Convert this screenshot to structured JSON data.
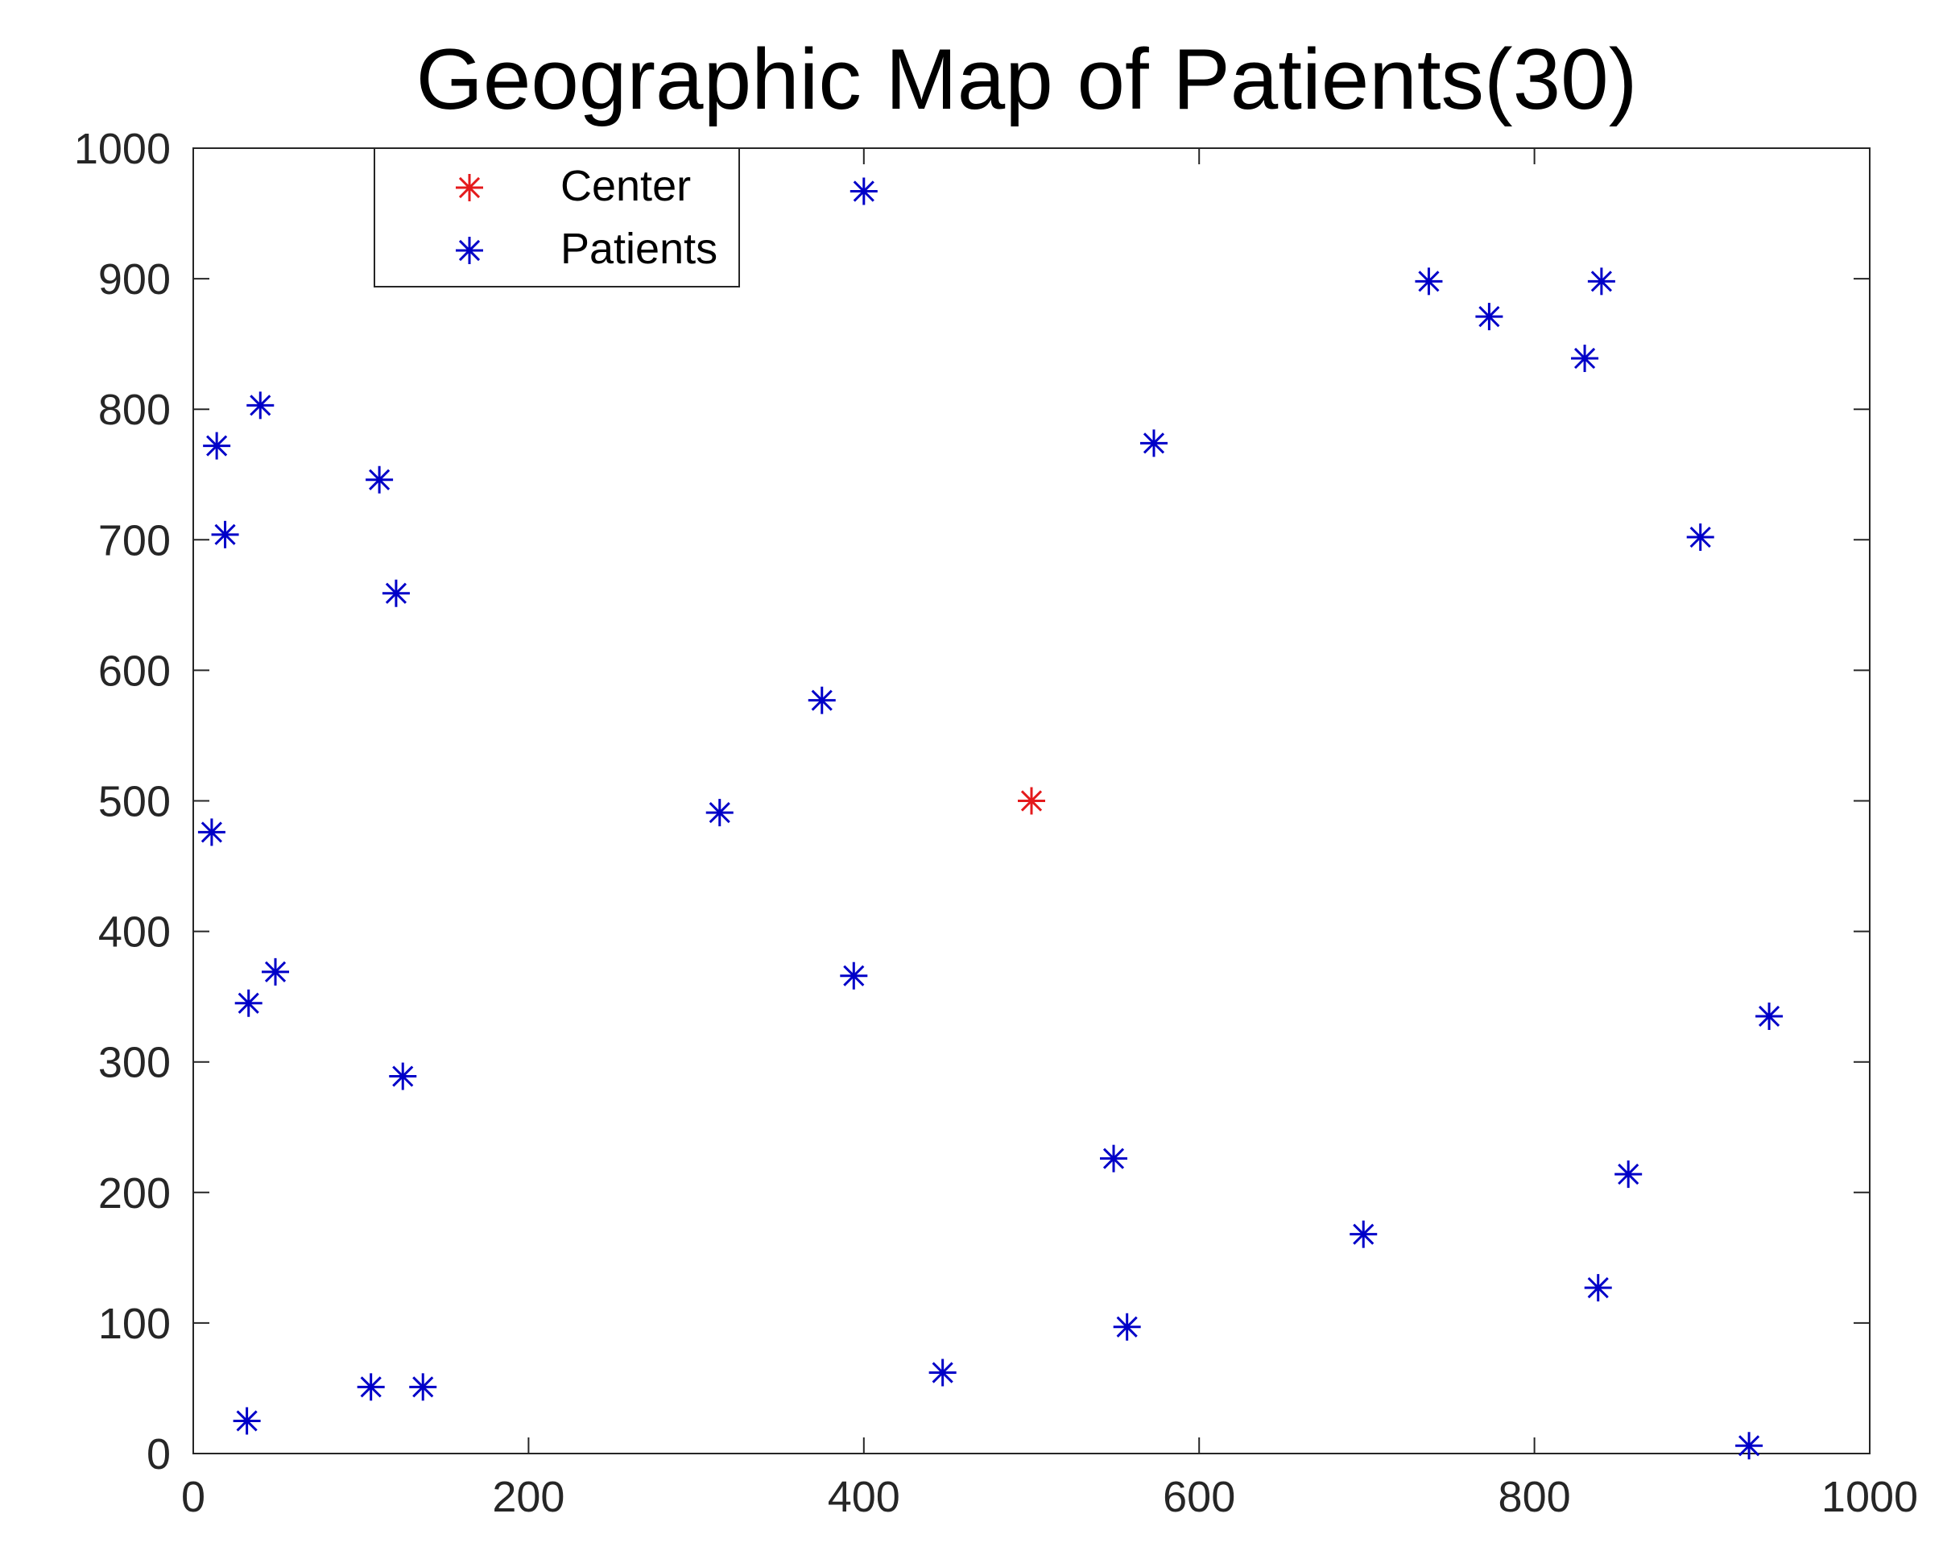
{
  "chart_data": {
    "type": "scatter",
    "title": "Geographic Map of Patients(30)",
    "xlabel": "",
    "ylabel": "",
    "xlim": [
      0,
      1000
    ],
    "ylim": [
      0,
      1000
    ],
    "xticks": [
      0,
      200,
      400,
      600,
      800,
      1000
    ],
    "yticks": [
      0,
      100,
      200,
      300,
      400,
      500,
      600,
      700,
      800,
      900,
      1000
    ],
    "grid": false,
    "legend": "top-left",
    "marker": "asterisk",
    "series": [
      {
        "name": "Center",
        "color": "#e41a1c",
        "points": [
          [
            500,
            500
          ]
        ]
      },
      {
        "name": "Patients",
        "color": "#0000c8",
        "points": [
          [
            400,
            967
          ],
          [
            40,
            803
          ],
          [
            14,
            772
          ],
          [
            111,
            746
          ],
          [
            19,
            704
          ],
          [
            121,
            659
          ],
          [
            573,
            774
          ],
          [
            737,
            898
          ],
          [
            773,
            871
          ],
          [
            830,
            839
          ],
          [
            840,
            898
          ],
          [
            899,
            702
          ],
          [
            375,
            577
          ],
          [
            314,
            491
          ],
          [
            11,
            476
          ],
          [
            394,
            366
          ],
          [
            49,
            369
          ],
          [
            33,
            345
          ],
          [
            125,
            289
          ],
          [
            940,
            335
          ],
          [
            549,
            226
          ],
          [
            856,
            214
          ],
          [
            698,
            168
          ],
          [
            838,
            127
          ],
          [
            557,
            97
          ],
          [
            447,
            62
          ],
          [
            106,
            51
          ],
          [
            137,
            51
          ],
          [
            32,
            25
          ],
          [
            928,
            6
          ]
        ]
      }
    ]
  }
}
